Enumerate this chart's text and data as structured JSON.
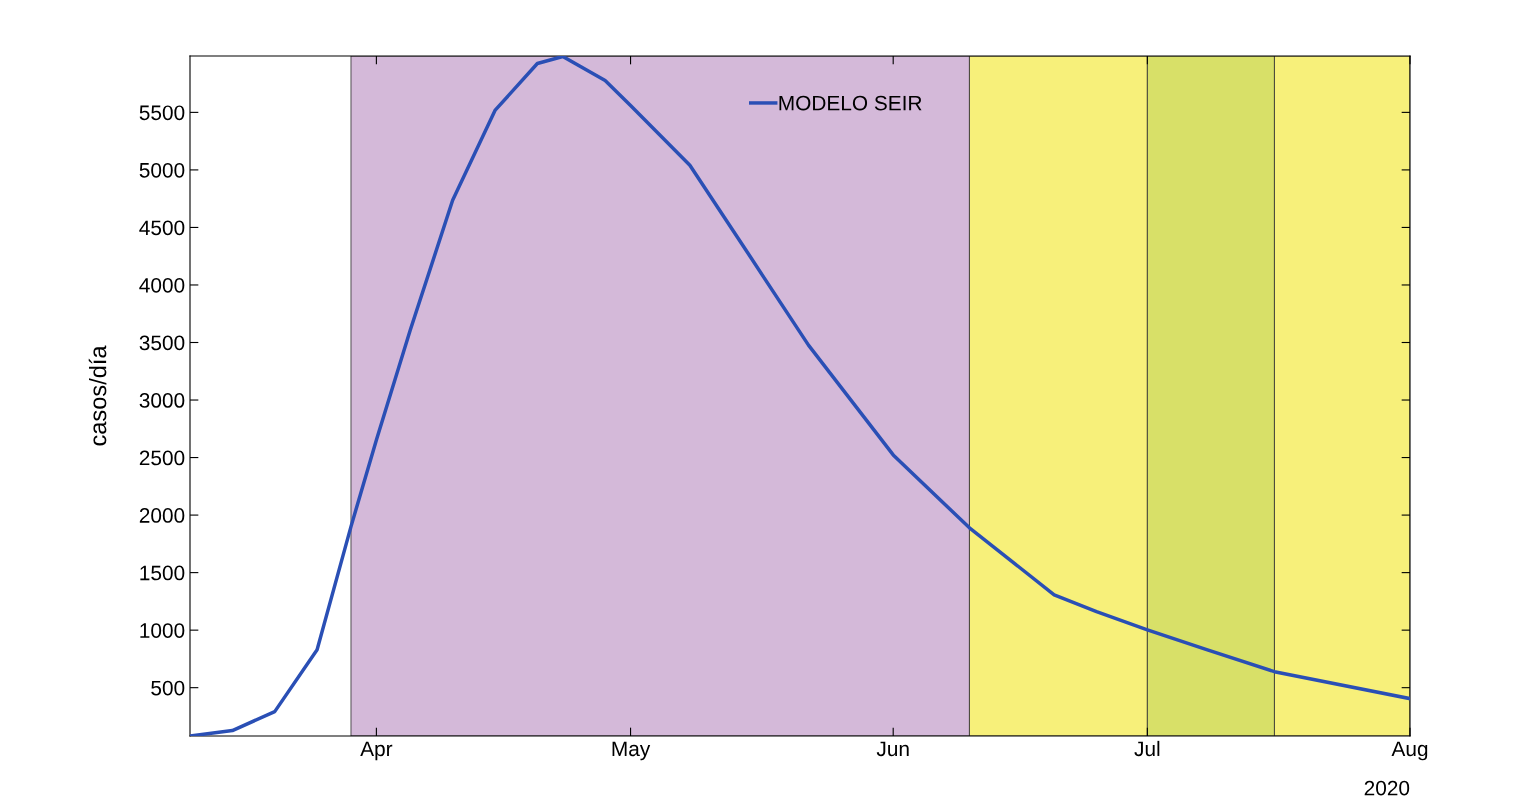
{
  "chart_data": {
    "type": "line",
    "ylabel": "casos/día",
    "x": [
      "2020-03-10",
      "2020-03-15",
      "2020-03-20",
      "2020-03-25",
      "2020-03-29",
      "2020-04-01",
      "2020-04-05",
      "2020-04-10",
      "2020-04-15",
      "2020-04-20",
      "2020-04-23",
      "2020-04-28",
      "2020-05-01",
      "2020-05-08",
      "2020-05-15",
      "2020-05-22",
      "2020-06-01",
      "2020-06-10",
      "2020-06-20",
      "2020-06-25",
      "2020-07-01",
      "2020-07-08",
      "2020-07-16",
      "2020-08-01"
    ],
    "series": [
      {
        "name": "MODELO SEIR",
        "color": "#2a4fb5",
        "values": [
          80,
          127,
          292,
          830,
          1900,
          2653,
          3608,
          4736,
          5517,
          5925,
          5986,
          5778,
          5560,
          5040,
          4260,
          3477,
          2523,
          1889,
          1307,
          1160,
          1003,
          830,
          639,
          405
        ]
      }
    ],
    "xlim": [
      "2020-03-10",
      "2020-08-01"
    ],
    "xticks": [
      {
        "value": "2020-04-01",
        "label": "Apr"
      },
      {
        "value": "2020-05-01",
        "label": "May"
      },
      {
        "value": "2020-06-01",
        "label": "Jun"
      },
      {
        "value": "2020-07-01",
        "label": "Jul"
      },
      {
        "value": "2020-08-01",
        "label": "Aug"
      }
    ],
    "ylim": [
      80,
      5990
    ],
    "yticks": [
      500,
      1000,
      1500,
      2000,
      2500,
      3000,
      3500,
      4000,
      4500,
      5000,
      5500
    ],
    "bands": [
      {
        "axis": "x",
        "from": "2020-03-29",
        "to": "2020-06-10",
        "color": "#d4b9d9"
      },
      {
        "axis": "x",
        "from": "2020-06-10",
        "to": "2020-07-01",
        "color": "#f7f07a"
      },
      {
        "axis": "x",
        "from": "2020-07-01",
        "to": "2020-07-16",
        "color": "#d8e068"
      },
      {
        "axis": "x",
        "from": "2020-07-16",
        "to": "2020-08-01",
        "color": "#f7f07a"
      }
    ],
    "annotations": [
      "2020"
    ],
    "legend": "top",
    "grid": false,
    "marker": "none",
    "line_style": "solid"
  }
}
